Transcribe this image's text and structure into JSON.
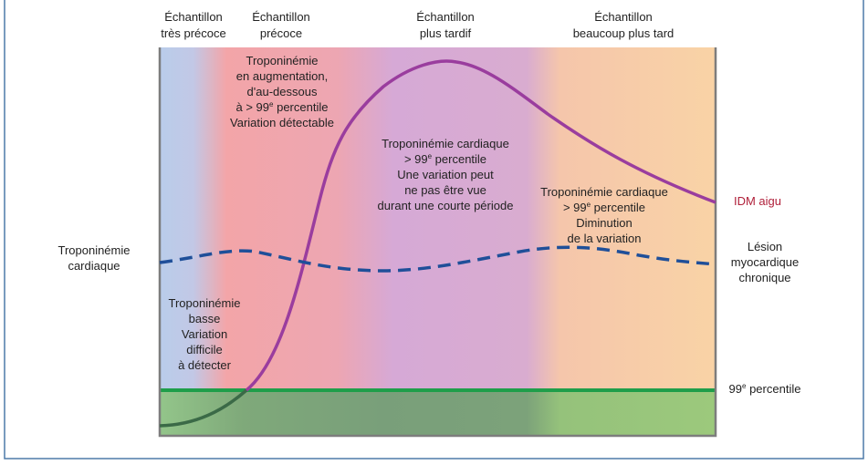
{
  "columns": [
    {
      "lines": [
        "Échantillon",
        "très précoce"
      ]
    },
    {
      "lines": [
        "Échantillon",
        "précoce"
      ]
    },
    {
      "lines": [
        "Échantillon",
        "plus tardif"
      ]
    },
    {
      "lines": [
        "Échantillon",
        "beaucoup plus tard"
      ]
    }
  ],
  "y_label": {
    "lines": [
      "Troponinémie",
      "cardiaque"
    ]
  },
  "annotations": [
    {
      "lines": [
        "Troponinémie",
        "en augmentation,",
        "d'au-dessous",
        "à > 99e percentile",
        "Variation détectable"
      ]
    },
    {
      "lines": [
        "Troponinémie cardiaque",
        "> 99e percentile",
        "Une variation peut",
        "ne pas être vue",
        "durant une courte période"
      ]
    },
    {
      "lines": [
        "Troponinémie cardiaque",
        "> 99e percentile",
        "Diminution",
        "de la variation"
      ]
    },
    {
      "lines": [
        "Troponinémie",
        "basse",
        "Variation",
        "difficile",
        "à détecter"
      ]
    }
  ],
  "curve_labels": {
    "acute": {
      "lines": [
        "IDM aigu"
      ]
    },
    "chronic": {
      "lines": [
        "Lésion",
        "myocardique",
        "chronique"
      ]
    },
    "threshold": {
      "lines": [
        "99e percentile"
      ]
    }
  }
}
